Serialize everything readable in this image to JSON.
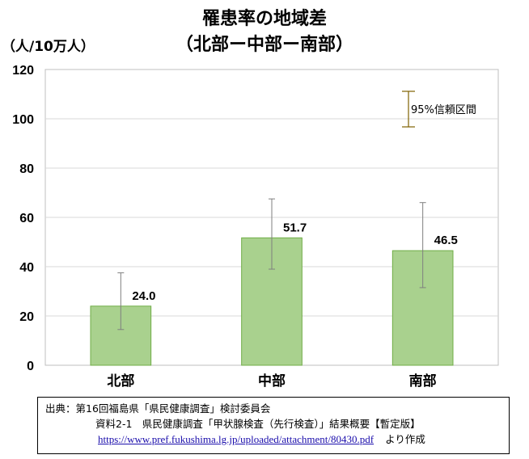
{
  "chart_data": {
    "type": "bar",
    "title": "罹患率の地域差",
    "subtitle": "（北部ー中部ー南部）",
    "ylabel": "（人/10万人）",
    "categories": [
      "北部",
      "中部",
      "南部"
    ],
    "values": [
      24.0,
      51.7,
      46.5
    ],
    "value_labels": [
      "24.0",
      "51.7",
      "46.5"
    ],
    "ci_lower": [
      14.5,
      39.0,
      31.5
    ],
    "ci_upper": [
      37.5,
      67.5,
      66.0
    ],
    "ylim": [
      0,
      120
    ],
    "yticks": [
      0,
      20,
      40,
      60,
      80,
      100,
      120
    ],
    "ytick_labels": [
      "0",
      "20",
      "40",
      "60",
      "80",
      "100",
      "120"
    ],
    "grid": true,
    "legend": {
      "label": "95%信頼区間",
      "placement": "top-right"
    },
    "colors": {
      "bar_fill": "#a9d18e",
      "bar_stroke": "#70ad47",
      "grid": "#d9d9d9",
      "errorbar": "#7f6000",
      "axis": "#bfbfbf"
    }
  },
  "source": {
    "line1": "出典：第16回福島県「県民健康調査」検討委員会",
    "line2": "資料2-1　県民健康調査「甲状腺検査（先行検査）」結果概要【暫定版】",
    "link": "https://www.pref.fukushima.lg.jp/uploaded/attachment/80430.pdf",
    "suffix": "より作成"
  }
}
